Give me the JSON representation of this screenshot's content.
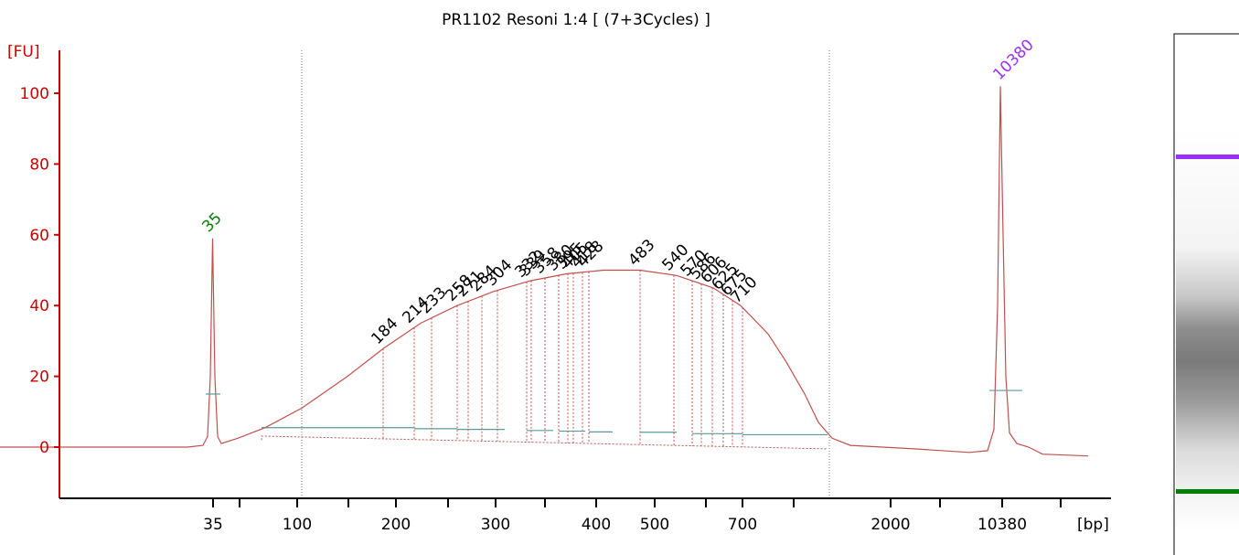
{
  "chart_data": {
    "type": "line",
    "title": "PR1102 Resoni 1:4  [ (7+3Cycles) ]",
    "ylabel": "[FU]",
    "xlabel": "[bp]",
    "ylim": [
      -14,
      112
    ],
    "yticks": [
      0,
      20,
      40,
      60,
      80,
      100
    ],
    "xtick_labels": [
      "35",
      "100",
      "200",
      "300",
      "400",
      "500",
      "700",
      "2000",
      "10380"
    ],
    "colors": {
      "trace": "#c0504d",
      "axis": "#cc0000",
      "baseline": "#5a9a9a",
      "marker_lower": "#008000",
      "marker_upper": "#9b30ff",
      "gel_upper": "#9b30ff",
      "gel_lower": "#008000"
    },
    "markers": [
      {
        "size": "35",
        "fu": 59,
        "color": "#008000"
      },
      {
        "size": "10380",
        "fu": 102,
        "color": "#9b30ff"
      }
    ],
    "peak_labels": [
      "184",
      "214",
      "233",
      "258",
      "271",
      "284",
      "304",
      "332",
      "339",
      "358",
      "380",
      "395",
      "405",
      "418",
      "428",
      "483",
      "540",
      "570",
      "586",
      "606",
      "625",
      "675",
      "710"
    ],
    "region": {
      "lower_fu": 5.5,
      "upper_fu": 3.5
    },
    "trace_points": [
      [
        0,
        0
      ],
      [
        120,
        0
      ],
      [
        205,
        0
      ],
      [
        222,
        0.5
      ],
      [
        227,
        3
      ],
      [
        230,
        20
      ],
      [
        232.5,
        59
      ],
      [
        235,
        20
      ],
      [
        238,
        3
      ],
      [
        242,
        1
      ],
      [
        260,
        2.5
      ],
      [
        290,
        5.5
      ],
      [
        330,
        11
      ],
      [
        380,
        20
      ],
      [
        420,
        28
      ],
      [
        460,
        35
      ],
      [
        500,
        40
      ],
      [
        540,
        44
      ],
      [
        580,
        47
      ],
      [
        620,
        49
      ],
      [
        660,
        50
      ],
      [
        700,
        50
      ],
      [
        740,
        48.5
      ],
      [
        780,
        45
      ],
      [
        810,
        40
      ],
      [
        840,
        32
      ],
      [
        860,
        24
      ],
      [
        880,
        15
      ],
      [
        895,
        7
      ],
      [
        910,
        2.5
      ],
      [
        930,
        0.5
      ],
      [
        1000,
        -0.5
      ],
      [
        1060,
        -1.5
      ],
      [
        1080,
        -1
      ],
      [
        1087,
        5
      ],
      [
        1091,
        40
      ],
      [
        1094,
        102
      ],
      [
        1097,
        60
      ],
      [
        1100,
        20
      ],
      [
        1104,
        4
      ],
      [
        1112,
        1
      ],
      [
        1125,
        0
      ],
      [
        1140,
        -2
      ],
      [
        1190,
        -2.5
      ]
    ]
  }
}
